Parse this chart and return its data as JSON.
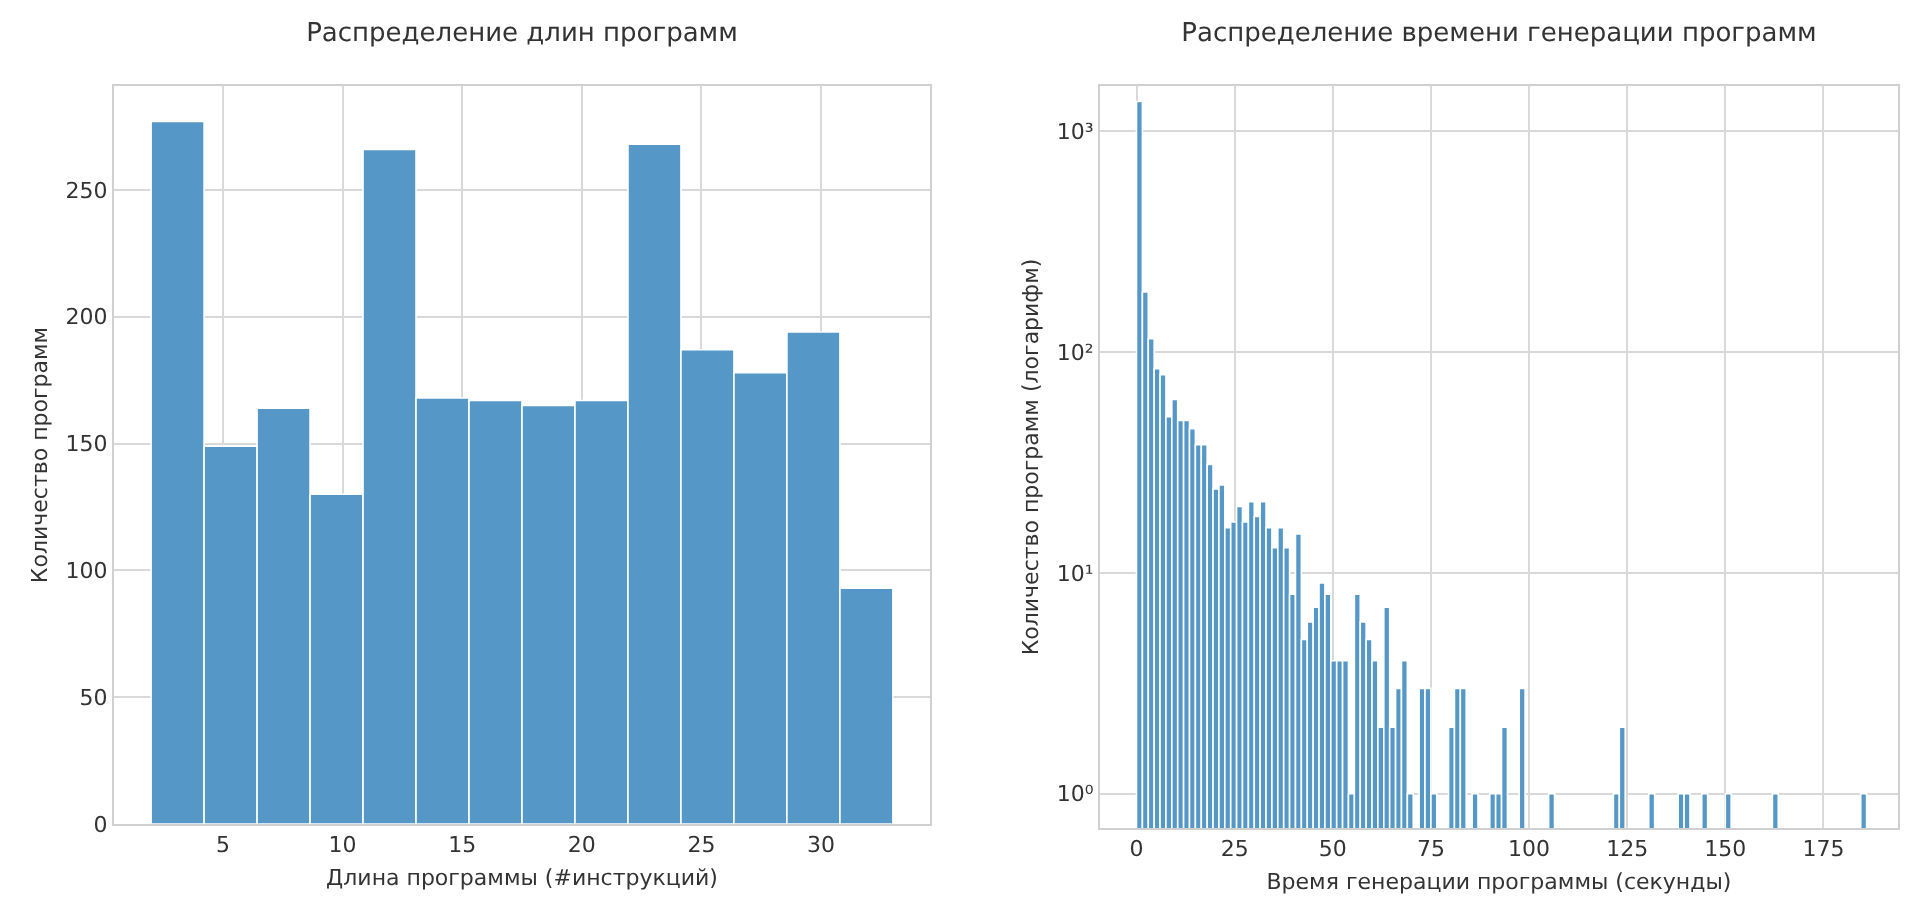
{
  "chart_data": [
    {
      "type": "histogram",
      "title": "Распределение длин программ",
      "xlabel": "Длина программы (#инструкций)",
      "ylabel": "Количество программ",
      "color": "#5598c8",
      "bins": [
        2,
        4.214,
        6.429,
        8.643,
        10.857,
        13.071,
        15.286,
        17.5,
        19.714,
        21.929,
        24.143,
        26.357,
        28.571,
        30.786,
        33
      ],
      "values": [
        277,
        149,
        164,
        130,
        266,
        168,
        167,
        165,
        167,
        268,
        187,
        178,
        194,
        93
      ],
      "xlim": [
        0.45,
        34.55
      ],
      "xticks": [
        5,
        10,
        15,
        20,
        25,
        30
      ],
      "ylim": [
        0,
        291
      ],
      "yticks": [
        0,
        50,
        100,
        150,
        200,
        250
      ],
      "grid": true
    },
    {
      "type": "histogram",
      "title": "Распределение времени генерации программ",
      "xlabel": "Время генерации программы (секунды)",
      "ylabel": "Количество программ (логарифм)",
      "color": "#5598c8",
      "log": "y",
      "bins": [
        0,
        1.5,
        3,
        4.5,
        6,
        7.5,
        9,
        10.5,
        12,
        13.5,
        15,
        16.5,
        18,
        19.5,
        21,
        22.5,
        24,
        25.5,
        27,
        28.5,
        30,
        31.5,
        33,
        34.5,
        36,
        37.5,
        39,
        40.5,
        42,
        43.5,
        45,
        46.5,
        48,
        49.5,
        51,
        52.5,
        54,
        55.5,
        57,
        58.5,
        60,
        61.5,
        63,
        64.5,
        66,
        67.5,
        69,
        70.5,
        72,
        73.5,
        75,
        76.5,
        78,
        79.5,
        81,
        82.5,
        84,
        85.5,
        87,
        88.5,
        90,
        91.5,
        93,
        94.5,
        96,
        97.5,
        99,
        100.5,
        102,
        103.5,
        105,
        106.5,
        108,
        109.5,
        111,
        112.5,
        114,
        115.5,
        117,
        118.5,
        120,
        121.5,
        123,
        124.5,
        126,
        127.5,
        129,
        130.5,
        132,
        133.5,
        135,
        136.5,
        138,
        139.5,
        141,
        142.5,
        144,
        145.5,
        147,
        148.5,
        150,
        151.5,
        153,
        154.5,
        156,
        157.5,
        159,
        160.5,
        162,
        163.5,
        165,
        166.5,
        168,
        169.5,
        171,
        172.5,
        174,
        175.5,
        177,
        178.5,
        180,
        181.5,
        183,
        184.5,
        186
      ],
      "values": [
        1361,
        187,
        115,
        84,
        79,
        51,
        61,
        49,
        49,
        45,
        38,
        38,
        31,
        24,
        25,
        16,
        17,
        20,
        17,
        21,
        18,
        21,
        16,
        13,
        16,
        13,
        8,
        15,
        5,
        6,
        7,
        9,
        8,
        4,
        4,
        4,
        1,
        8,
        6,
        5,
        4,
        2,
        7,
        2,
        3,
        4,
        1,
        null,
        3,
        3,
        1,
        null,
        null,
        2,
        3,
        3,
        null,
        1,
        null,
        null,
        1,
        1,
        2,
        null,
        null,
        3,
        null,
        null,
        null,
        null,
        1,
        null,
        null,
        null,
        null,
        null,
        null,
        null,
        null,
        null,
        null,
        1,
        2,
        null,
        null,
        null,
        null,
        1,
        null,
        null,
        null,
        null,
        1,
        1,
        null,
        null,
        1,
        null,
        null,
        null,
        1,
        null,
        null,
        null,
        null,
        null,
        null,
        null,
        1,
        null,
        null,
        null,
        null,
        null,
        null,
        null,
        null,
        null,
        null,
        null,
        null,
        null,
        null,
        1
      ],
      "xlim": [
        -9.3,
        194
      ],
      "xticks": [
        0,
        25,
        50,
        75,
        100,
        125,
        150,
        175
      ],
      "ylim": [
        0.7,
        1600
      ],
      "yticks": [
        {
          "value": 1,
          "label": "10⁰"
        },
        {
          "value": 10,
          "label": "10¹"
        },
        {
          "value": 100,
          "label": "10²"
        },
        {
          "value": 1000,
          "label": "10³"
        }
      ],
      "grid": true
    }
  ]
}
